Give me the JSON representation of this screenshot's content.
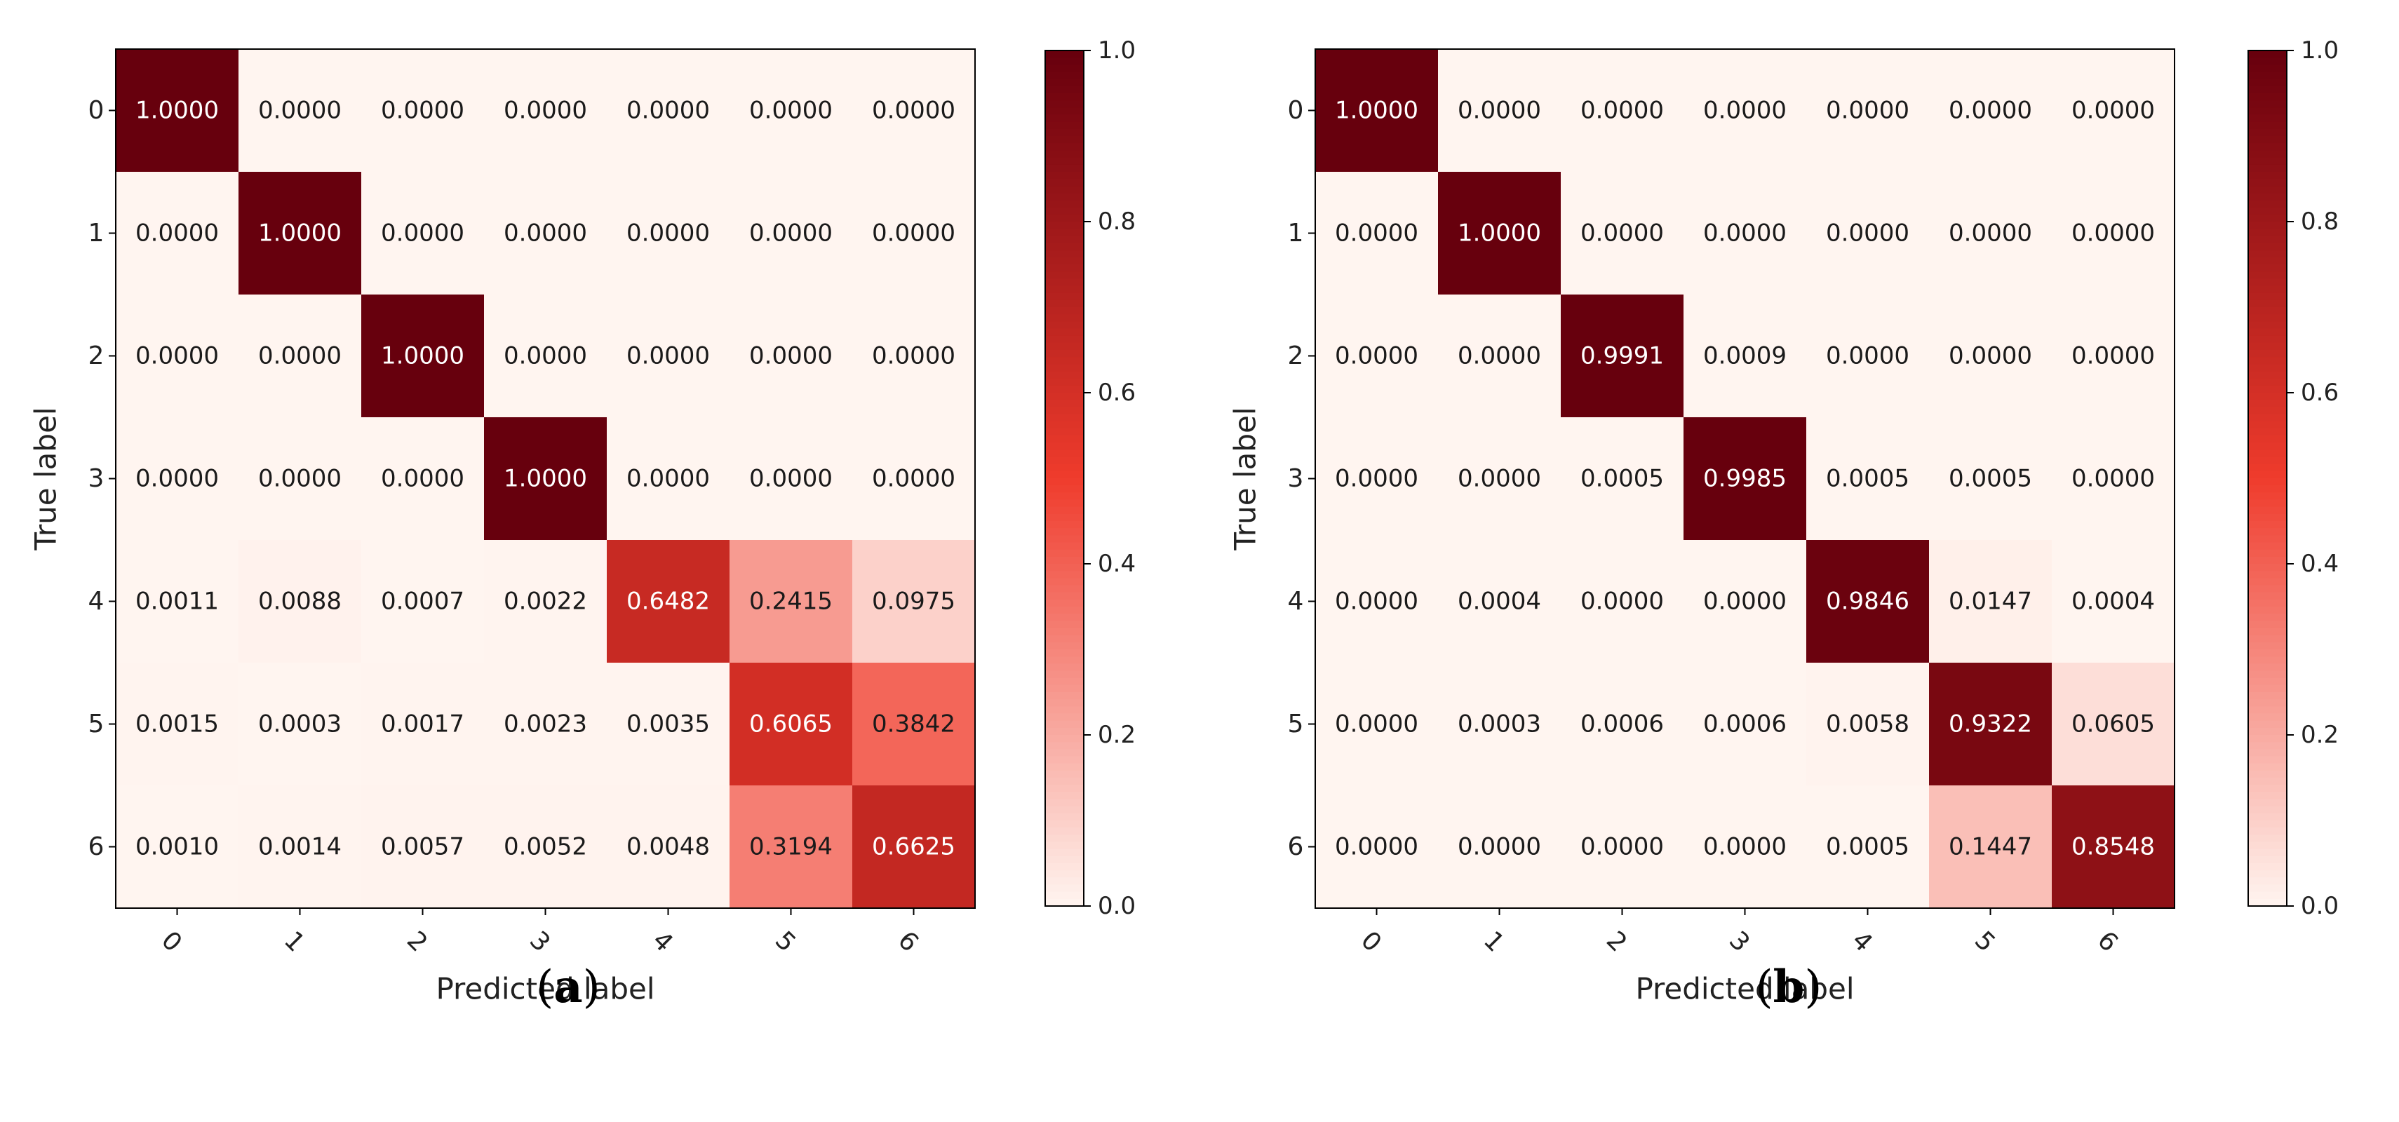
{
  "figure": {
    "captions": [
      {
        "open": "(",
        "letter": "a",
        "close": ")"
      },
      {
        "open": "(",
        "letter": "b",
        "close": ")"
      }
    ]
  },
  "colors": {
    "low": "#fff5f0",
    "mid": "#ef3b2c",
    "high": "#67000d"
  },
  "chart_data": [
    {
      "type": "heatmap",
      "title": "",
      "xlabel": "Predicted label",
      "ylabel": "True label",
      "x_ticks": [
        "0",
        "1",
        "2",
        "3",
        "4",
        "5",
        "6"
      ],
      "y_ticks": [
        "0",
        "1",
        "2",
        "3",
        "4",
        "5",
        "6"
      ],
      "colorbar": {
        "range": [
          0.0,
          1.0
        ],
        "ticks": [
          "0.0",
          "0.2",
          "0.4",
          "0.6",
          "0.8",
          "1.0"
        ]
      },
      "values": [
        [
          "1.0000",
          "0.0000",
          "0.0000",
          "0.0000",
          "0.0000",
          "0.0000",
          "0.0000"
        ],
        [
          "0.0000",
          "1.0000",
          "0.0000",
          "0.0000",
          "0.0000",
          "0.0000",
          "0.0000"
        ],
        [
          "0.0000",
          "0.0000",
          "1.0000",
          "0.0000",
          "0.0000",
          "0.0000",
          "0.0000"
        ],
        [
          "0.0000",
          "0.0000",
          "0.0000",
          "1.0000",
          "0.0000",
          "0.0000",
          "0.0000"
        ],
        [
          "0.0011",
          "0.0088",
          "0.0007",
          "0.0022",
          "0.6482",
          "0.2415",
          "0.0975"
        ],
        [
          "0.0015",
          "0.0003",
          "0.0017",
          "0.0023",
          "0.0035",
          "0.6065",
          "0.3842"
        ],
        [
          "0.0010",
          "0.0014",
          "0.0057",
          "0.0052",
          "0.0048",
          "0.3194",
          "0.6625"
        ]
      ]
    },
    {
      "type": "heatmap",
      "title": "",
      "xlabel": "Predicted label",
      "ylabel": "True label",
      "x_ticks": [
        "0",
        "1",
        "2",
        "3",
        "4",
        "5",
        "6"
      ],
      "y_ticks": [
        "0",
        "1",
        "2",
        "3",
        "4",
        "5",
        "6"
      ],
      "colorbar": {
        "range": [
          0.0,
          1.0
        ],
        "ticks": [
          "0.0",
          "0.2",
          "0.4",
          "0.6",
          "0.8",
          "1.0"
        ]
      },
      "values": [
        [
          "1.0000",
          "0.0000",
          "0.0000",
          "0.0000",
          "0.0000",
          "0.0000",
          "0.0000"
        ],
        [
          "0.0000",
          "1.0000",
          "0.0000",
          "0.0000",
          "0.0000",
          "0.0000",
          "0.0000"
        ],
        [
          "0.0000",
          "0.0000",
          "0.9991",
          "0.0009",
          "0.0000",
          "0.0000",
          "0.0000"
        ],
        [
          "0.0000",
          "0.0000",
          "0.0005",
          "0.9985",
          "0.0005",
          "0.0005",
          "0.0000"
        ],
        [
          "0.0000",
          "0.0004",
          "0.0000",
          "0.0000",
          "0.9846",
          "0.0147",
          "0.0004"
        ],
        [
          "0.0000",
          "0.0003",
          "0.0006",
          "0.0006",
          "0.0058",
          "0.9322",
          "0.0605"
        ],
        [
          "0.0000",
          "0.0000",
          "0.0000",
          "0.0000",
          "0.0005",
          "0.1447",
          "0.8548"
        ]
      ]
    }
  ]
}
